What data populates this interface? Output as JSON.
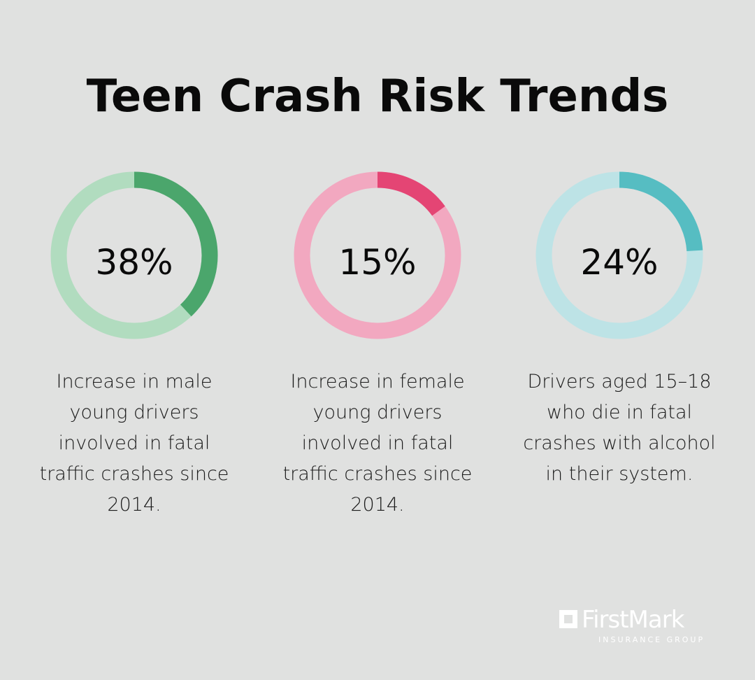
{
  "title": "Teen Crash Risk Trends",
  "chart_data": [
    {
      "type": "pie",
      "value_label": "38%",
      "value": 38,
      "description": "Increase in male young drivers involved in fatal traffic crashes since 2014.",
      "colors": {
        "fill": "#4ba66c",
        "track": "#b1dcbf"
      }
    },
    {
      "type": "pie",
      "value_label": "15%",
      "value": 15,
      "description": "Increase in female young drivers involved in fatal traffic crashes since 2014.",
      "colors": {
        "fill": "#e44574",
        "track": "#f2a8c0"
      }
    },
    {
      "type": "pie",
      "value_label": "24%",
      "value": 24,
      "description": "Drivers aged 15–18 who die in fatal crashes with alcohol in their system.",
      "colors": {
        "fill": "#56bdc2",
        "track": "#bde3e6"
      }
    }
  ],
  "brand": {
    "name": "FirstMark",
    "subtitle": "INSURANCE GROUP"
  }
}
